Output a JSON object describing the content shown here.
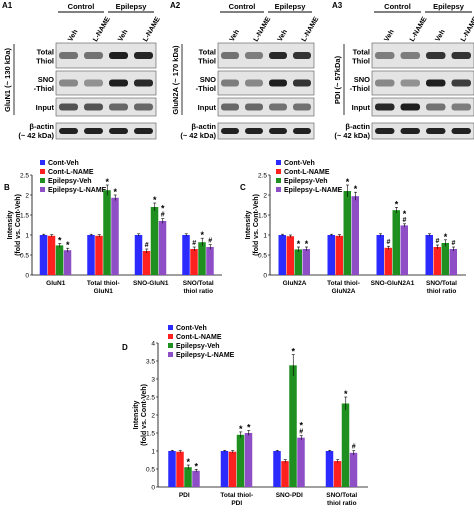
{
  "colors": {
    "cont_veh": "#2b2bff",
    "cont_lname": "#ff2020",
    "epi_veh": "#1f8f1f",
    "epi_lname": "#8e4fc6"
  },
  "blots": [
    {
      "panel_label": "A1",
      "group_labels": [
        "Control",
        "Epilepsy"
      ],
      "lane_labels": [
        "Veh",
        "L-NAME",
        "Veh",
        "L-NAME"
      ],
      "protein_label": "GluN1 (~ 130 kDa)",
      "row_labels": [
        "Total Thiol",
        "SNO -Thiol",
        "Input"
      ],
      "actin_label": [
        "β-actin",
        "(~ 42 kDa)"
      ]
    },
    {
      "panel_label": "A2",
      "group_labels": [
        "Control",
        "Epilepsy"
      ],
      "lane_labels": [
        "Veh",
        "L-NAME",
        "Veh",
        "L-NAME"
      ],
      "protein_label": "GluN2A (~ 170 kDa)",
      "row_labels": [
        "Total Thiol",
        "SNO -Thiol",
        "Input"
      ],
      "actin_label": [
        "β-actin",
        "(~ 42 kDa)"
      ]
    },
    {
      "panel_label": "A3",
      "group_labels": [
        "Control",
        "Epilepsy"
      ],
      "lane_labels": [
        "Veh",
        "L-NAME",
        "Veh",
        "L-NAME"
      ],
      "protein_label": "PDI (~ 57kDa)",
      "row_labels": [
        "Total Thiol",
        "SNO -Thiol",
        "Input"
      ],
      "actin_label": [
        "β-actin",
        "(~ 42 kDa)"
      ]
    }
  ],
  "chart_data": [
    {
      "panel_label": "B",
      "type": "bar",
      "ylabel": "Intensity (fold vs. Cont-Veh)",
      "ylim": [
        0,
        2.5
      ],
      "yticks": [
        "0",
        "0.5",
        "1",
        "1.5",
        "2",
        "2.5"
      ],
      "categories": [
        "GluN1",
        "Total thiol-GluN1",
        "SNO-GluN1",
        "SNO/Total thiol ratio"
      ],
      "series": [
        {
          "name": "Cont-Veh",
          "values": [
            1.0,
            1.0,
            1.0,
            1.0
          ],
          "errors": [
            0.02,
            0.02,
            0.03,
            0.03
          ],
          "marks": [
            "",
            "",
            "",
            ""
          ]
        },
        {
          "name": "Cont-L-NAME",
          "values": [
            0.98,
            0.98,
            0.6,
            0.65
          ],
          "errors": [
            0.03,
            0.03,
            0.05,
            0.05
          ],
          "marks": [
            "",
            "",
            "#",
            "#"
          ]
        },
        {
          "name": "Epilepsy-Veh",
          "values": [
            0.74,
            2.12,
            1.7,
            0.82
          ],
          "errors": [
            0.05,
            0.13,
            0.1,
            0.1
          ],
          "marks": [
            "*",
            "*",
            "*",
            "*"
          ]
        },
        {
          "name": "Epilepsy-L-NAME",
          "values": [
            0.62,
            1.93,
            1.35,
            0.7
          ],
          "errors": [
            0.05,
            0.07,
            0.06,
            0.06
          ],
          "marks": [
            "*",
            "*",
            "*#",
            "#"
          ]
        }
      ]
    },
    {
      "panel_label": "C",
      "type": "bar",
      "ylabel": "Intensity (fold vs. Cont-Veh)",
      "ylim": [
        0,
        2.5
      ],
      "yticks": [
        "0",
        "0.5",
        "1",
        "1.5",
        "2",
        "2.5"
      ],
      "categories": [
        "GluN2A",
        "Total thiol-GluN2A",
        "SNO-GluN2A1",
        "SNO/Total thiol ratio"
      ],
      "series": [
        {
          "name": "Cont-Veh",
          "values": [
            1.0,
            1.0,
            1.0,
            1.0
          ],
          "errors": [
            0.02,
            0.02,
            0.03,
            0.03
          ],
          "marks": [
            "",
            "",
            "",
            ""
          ]
        },
        {
          "name": "Cont-L-NAME",
          "values": [
            0.97,
            0.98,
            0.68,
            0.7
          ],
          "errors": [
            0.03,
            0.03,
            0.04,
            0.05
          ],
          "marks": [
            "",
            "",
            "#",
            "#"
          ]
        },
        {
          "name": "Epilepsy-Veh",
          "values": [
            0.64,
            2.1,
            1.62,
            0.8
          ],
          "errors": [
            0.06,
            0.15,
            0.07,
            0.08
          ],
          "marks": [
            "*",
            "*",
            "*",
            "*"
          ]
        },
        {
          "name": "Epilepsy-L-NAME",
          "values": [
            0.65,
            1.97,
            1.24,
            0.65
          ],
          "errors": [
            0.05,
            0.1,
            0.04,
            0.05
          ],
          "marks": [
            "*",
            "*",
            "*#",
            "#"
          ]
        }
      ]
    },
    {
      "panel_label": "D",
      "type": "bar",
      "ylabel": "Intensity (fold vs. Cont-Veh)",
      "ylim": [
        0,
        4
      ],
      "yticks": [
        "0",
        "0.5",
        "1",
        "1.5",
        "2",
        "2.5",
        "3",
        "3.5",
        "4"
      ],
      "categories": [
        "PDI",
        "Total thiol-PDI",
        "SNO-PDI",
        "SNO/Total thiol ratio"
      ],
      "series": [
        {
          "name": "Cont-Veh",
          "values": [
            1.0,
            1.0,
            1.0,
            1.0
          ],
          "errors": [
            0.02,
            0.02,
            0.02,
            0.02
          ],
          "marks": [
            "",
            "",
            "",
            ""
          ]
        },
        {
          "name": "Cont-L-NAME",
          "values": [
            0.98,
            0.98,
            0.72,
            0.72
          ],
          "errors": [
            0.03,
            0.03,
            0.04,
            0.04
          ],
          "marks": [
            "",
            "",
            "",
            ""
          ]
        },
        {
          "name": "Epilepsy-Veh",
          "values": [
            0.55,
            1.45,
            3.38,
            2.32
          ],
          "errors": [
            0.06,
            0.08,
            0.3,
            0.18
          ],
          "marks": [
            "*",
            "*",
            "*",
            "*"
          ]
        },
        {
          "name": "Epilepsy-L-NAME",
          "values": [
            0.45,
            1.5,
            1.37,
            0.95
          ],
          "errors": [
            0.04,
            0.07,
            0.06,
            0.06
          ],
          "marks": [
            "*",
            "*",
            "*#",
            "#"
          ]
        }
      ]
    }
  ]
}
